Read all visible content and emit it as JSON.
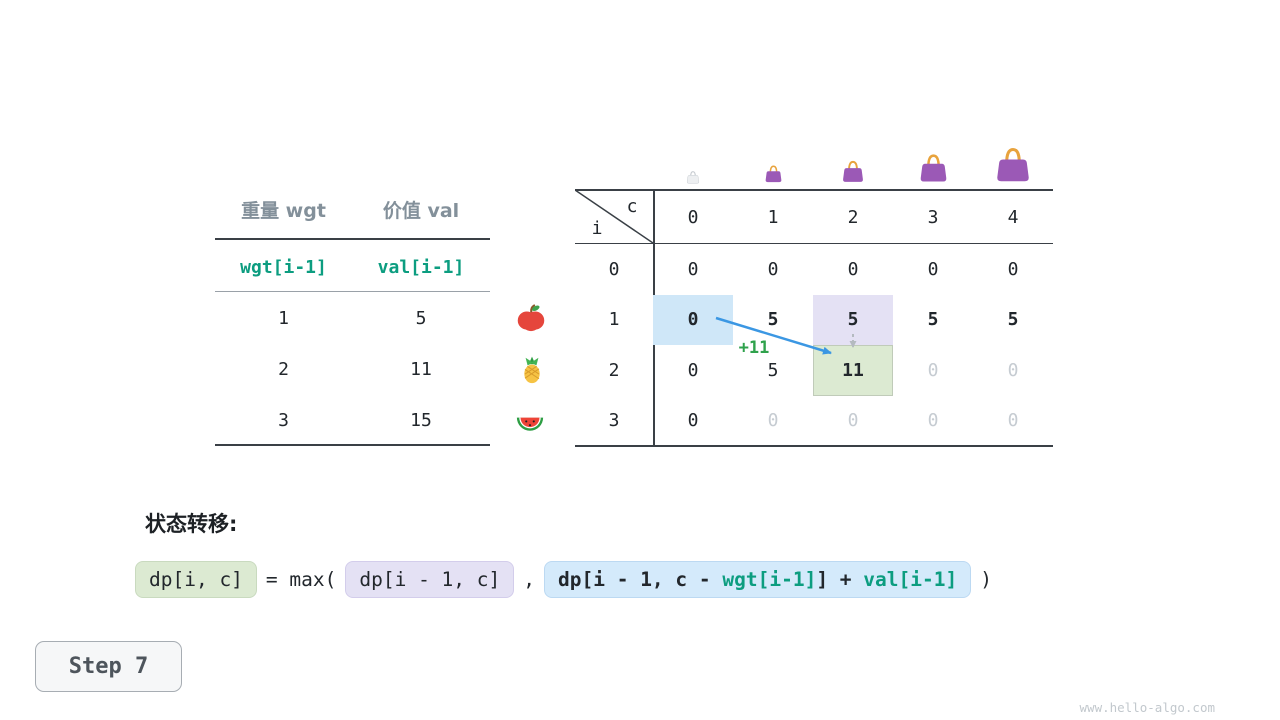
{
  "left_table": {
    "col1_header": "重量 wgt",
    "col2_header": "价值 val",
    "col1_sub": "wgt[i-1]",
    "col2_sub": "val[i-1]",
    "rows": [
      {
        "wgt": "1",
        "val": "5",
        "fruit": "apple-icon"
      },
      {
        "wgt": "2",
        "val": "11",
        "fruit": "pineapple-icon"
      },
      {
        "wgt": "3",
        "val": "15",
        "fruit": "watermelon-icon"
      }
    ]
  },
  "dp_table": {
    "corner_col": "c",
    "corner_row": "i",
    "col_headers": [
      "0",
      "1",
      "2",
      "3",
      "4"
    ],
    "row_headers": [
      "0",
      "1",
      "2",
      "3"
    ],
    "rows": [
      [
        "0",
        "0",
        "0",
        "0",
        "0"
      ],
      [
        "0",
        "5",
        "5",
        "5",
        "5"
      ],
      [
        "0",
        "5",
        "11",
        "0",
        "0"
      ],
      [
        "0",
        "0",
        "0",
        "0",
        "0"
      ]
    ],
    "cell_styles": [
      [
        "",
        "",
        "",
        "",
        ""
      ],
      [
        "hl-blue bold",
        "bold",
        "hl-purple bold",
        "bold",
        "bold"
      ],
      [
        "",
        "",
        "hl-green bold",
        "dim",
        "dim"
      ],
      [
        "",
        "dim",
        "dim",
        "dim",
        "dim"
      ]
    ],
    "bags": [
      "ghost",
      "small",
      "medium",
      "large",
      "xlarge"
    ],
    "arrow_label": "+11"
  },
  "formula": {
    "title": "状态转移:",
    "lhs": "dp[i, c]",
    "eq_max": "= max(",
    "arg1": "dp[i - 1, c]",
    "comma": ",",
    "arg2": [
      {
        "text": "dp[i - 1, c - ",
        "teal": false
      },
      {
        "text": "wgt[i-1]",
        "teal": true
      },
      {
        "text": "] + ",
        "teal": false
      },
      {
        "text": "val[i-1]",
        "teal": true
      }
    ],
    "close": ")"
  },
  "step": {
    "label": "Step 7"
  },
  "watermark": "www.hello-algo.com",
  "colors": {
    "accent_teal": "#0c9d80",
    "accent_green": "#2fa24c",
    "arrow_blue": "#3b97e3",
    "highlight_blue": "#cfe7f8",
    "highlight_purple": "#e4e1f4",
    "highlight_green": "#dcead2",
    "bag_purple": "#9b59b6",
    "bag_handle": "#e8a33d",
    "line_dark": "#3a4046"
  }
}
